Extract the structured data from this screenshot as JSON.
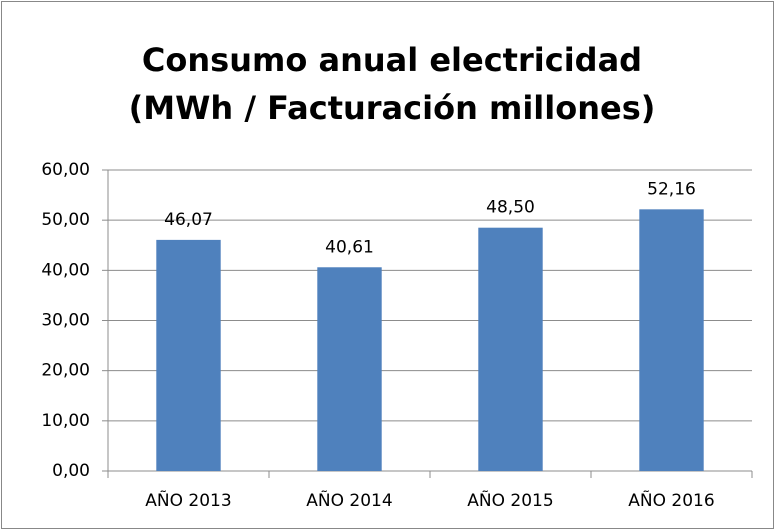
{
  "chart_data": {
    "type": "bar",
    "title": [
      "Consumo anual electricidad",
      "(MWh / Facturación millones)"
    ],
    "categories": [
      "AÑO 2013",
      "AÑO 2014",
      "AÑO 2015",
      "AÑO 2016"
    ],
    "values": [
      46.07,
      40.61,
      48.5,
      52.16
    ],
    "value_labels": [
      "46,07",
      "40,61",
      "48,50",
      "52,16"
    ],
    "color": "#4f81bd",
    "ylim": [
      0,
      60
    ],
    "yticks": [
      {
        "value": 0,
        "label": "0,00"
      },
      {
        "value": 10,
        "label": "10,00"
      },
      {
        "value": 20,
        "label": "20,00"
      },
      {
        "value": 30,
        "label": "30,00"
      },
      {
        "value": 40,
        "label": "40,00"
      },
      {
        "value": 50,
        "label": "50,00"
      },
      {
        "value": 60,
        "label": "60,00"
      }
    ],
    "grid": true
  }
}
